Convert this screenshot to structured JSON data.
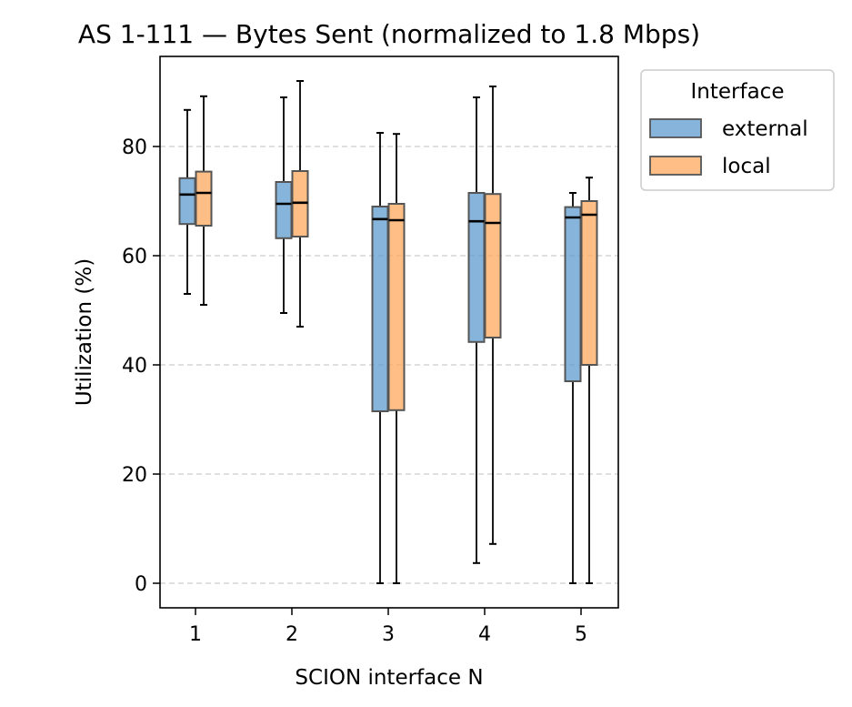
{
  "chart_data": {
    "type": "box",
    "title": "AS 1-111 — Bytes Sent (normalized to 1.8 Mbps)",
    "xlabel": "SCION interface N",
    "ylabel": "Utilization (%)",
    "categories": [
      "1",
      "2",
      "3",
      "4",
      "5"
    ],
    "ylim": [
      -4.5,
      96.5
    ],
    "yticks": [
      0,
      20,
      40,
      60,
      80
    ],
    "grid": "y-dashed",
    "legend": {
      "title": "Interface",
      "placement": "outside-top-right"
    },
    "series": [
      {
        "name": "external",
        "color": "#5d9bcf",
        "boxes": [
          {
            "whisker_low": 53,
            "q1": 65.8,
            "median": 71.2,
            "q3": 74.2,
            "whisker_high": 86.7
          },
          {
            "whisker_low": 49.5,
            "q1": 63.2,
            "median": 69.5,
            "q3": 73.5,
            "whisker_high": 89
          },
          {
            "whisker_low": 0,
            "q1": 31.5,
            "median": 66.7,
            "q3": 69,
            "whisker_high": 82.5
          },
          {
            "whisker_low": 3.7,
            "q1": 44.2,
            "median": 66.3,
            "q3": 71.5,
            "whisker_high": 89
          },
          {
            "whisker_low": 0,
            "q1": 37,
            "median": 67,
            "q3": 68.9,
            "whisker_high": 71.5
          }
        ]
      },
      {
        "name": "local",
        "color": "#ffa85c",
        "boxes": [
          {
            "whisker_low": 51,
            "q1": 65.5,
            "median": 71.5,
            "q3": 75.4,
            "whisker_high": 89.2
          },
          {
            "whisker_low": 47,
            "q1": 63.5,
            "median": 69.7,
            "q3": 75.5,
            "whisker_high": 92
          },
          {
            "whisker_low": 0,
            "q1": 31.7,
            "median": 66.5,
            "q3": 69.5,
            "whisker_high": 82.3
          },
          {
            "whisker_low": 7.2,
            "q1": 45,
            "median": 66,
            "q3": 71.3,
            "whisker_high": 91
          },
          {
            "whisker_low": 0,
            "q1": 40,
            "median": 67.5,
            "q3": 70,
            "whisker_high": 74.3
          }
        ]
      }
    ]
  }
}
